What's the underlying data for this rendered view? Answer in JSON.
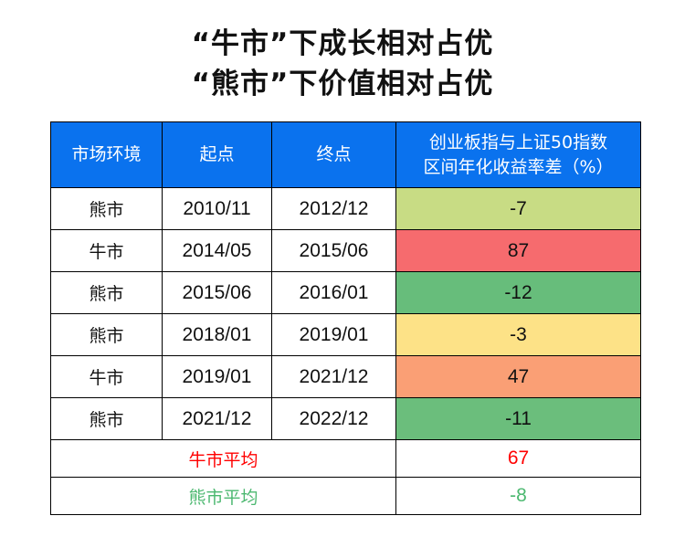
{
  "title": {
    "line1": "“牛市”下成长相对占优",
    "line2": "“熊市”下价值相对占优"
  },
  "table": {
    "headers": [
      "市场环境",
      "起点",
      "终点",
      "创业板指与上证50指数\n区间年化收益率差（%）"
    ],
    "rows": [
      {
        "env": "熊市",
        "start": "2010/11",
        "end": "2012/12",
        "diff": "-7",
        "color": "#c8dc84"
      },
      {
        "env": "牛市",
        "start": "2014/05",
        "end": "2015/06",
        "diff": "87",
        "color": "#f66b6e"
      },
      {
        "env": "熊市",
        "start": "2015/06",
        "end": "2016/01",
        "diff": "-12",
        "color": "#67bd7b"
      },
      {
        "env": "熊市",
        "start": "2018/01",
        "end": "2019/01",
        "diff": "-3",
        "color": "#fde287"
      },
      {
        "env": "牛市",
        "start": "2019/01",
        "end": "2021/12",
        "diff": "47",
        "color": "#fa9f75"
      },
      {
        "env": "熊市",
        "start": "2021/12",
        "end": "2022/12",
        "diff": "-11",
        "color": "#6bbe7c"
      }
    ],
    "bull_avg": {
      "label": "牛市平均",
      "value": "67",
      "color": "#ff0000"
    },
    "bear_avg": {
      "label": "熊市平均",
      "value": "-8",
      "color": "#4cb870"
    }
  }
}
